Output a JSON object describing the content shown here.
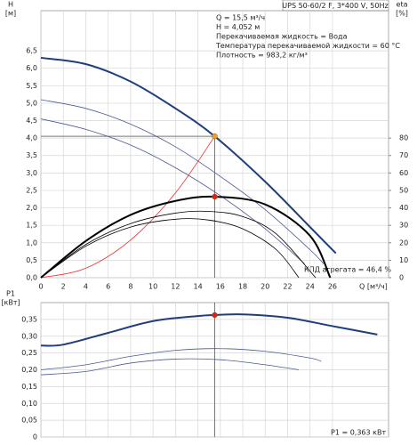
{
  "chart_data": [
    {
      "type": "line",
      "title": "UPS 50-60/2 F, 3*400 V, 50Hz",
      "ylabel": "H",
      "yunit": "[м]",
      "y2label": "eta",
      "y2unit": "[%]",
      "xlabel": "Q [м³/ч]",
      "annotations": [
        "Q = 15,5 м³/ч",
        "H = 4,052 м",
        "Перекачиваемая жидкость = Вода",
        "Температура перекачиваемой жидкости = 60 °C",
        "Плотность = 983,2 кг/м³"
      ],
      "efficiency_label": "КПД агрегата = 46,4 %",
      "grid": true,
      "xlim": [
        0,
        31
      ],
      "xticks": [
        0,
        2,
        4,
        6,
        8,
        10,
        12,
        14,
        16,
        18,
        20,
        22,
        24,
        26
      ],
      "ylim": [
        0,
        7.65
      ],
      "yticks": [
        {
          "value": 0,
          "label": "0,0"
        },
        {
          "value": 0.5,
          "label": "0,5"
        },
        {
          "value": 1,
          "label": "1,0"
        },
        {
          "value": 1.5,
          "label": "1,5"
        },
        {
          "value": 2,
          "label": "2,0"
        },
        {
          "value": 2.5,
          "label": "2,5"
        },
        {
          "value": 3,
          "label": "3,0"
        },
        {
          "value": 3.5,
          "label": "3,5"
        },
        {
          "value": 4,
          "label": "4,0"
        },
        {
          "value": 4.5,
          "label": "4,5"
        },
        {
          "value": 5,
          "label": "5,0"
        },
        {
          "value": 5.5,
          "label": "5,5"
        },
        {
          "value": 6,
          "label": "6,0"
        },
        {
          "value": 6.5,
          "label": "6,5"
        }
      ],
      "y2lim": [
        0,
        153
      ],
      "y2ticks": [
        0,
        10,
        20,
        30,
        40,
        50,
        60,
        70,
        80
      ],
      "series": [
        {
          "color": "#1f3f7a",
          "width": 2,
          "x": [
            0,
            4,
            8,
            12,
            15.5,
            20,
            24,
            26.3
          ],
          "values": [
            6.3,
            6.12,
            5.62,
            4.85,
            4.05,
            2.75,
            1.45,
            0.7
          ]
        },
        {
          "color": "#4a5a90",
          "width": 0.8,
          "x": [
            0,
            4,
            8,
            12,
            16,
            20,
            24,
            25.2
          ],
          "values": [
            5.1,
            4.85,
            4.4,
            3.75,
            2.9,
            1.95,
            0.8,
            0.4
          ]
        },
        {
          "color": "#4a5a90",
          "width": 0.8,
          "x": [
            0,
            4,
            8,
            12,
            16,
            20,
            23.5
          ],
          "values": [
            4.55,
            4.25,
            3.8,
            3.15,
            2.35,
            1.4,
            0.4
          ]
        },
        {
          "color": "#e83030",
          "width": 0.8,
          "x": [
            0,
            4,
            8,
            12,
            15.5
          ],
          "values": [
            0,
            0.27,
            1.08,
            2.43,
            4.05
          ]
        },
        {
          "color": "#000000",
          "width": 2,
          "axis": "y2",
          "x": [
            0,
            4,
            8,
            12,
            15.5,
            20,
            24,
            25.8
          ],
          "values": [
            0,
            21,
            36,
            44,
            46.4,
            42,
            24,
            0
          ]
        },
        {
          "color": "#000000",
          "width": 0.8,
          "axis": "y2",
          "x": [
            0,
            4,
            8,
            12,
            15,
            18,
            21,
            24.5
          ],
          "values": [
            0,
            19,
            31,
            37,
            38,
            35,
            25,
            0
          ]
        },
        {
          "color": "#000000",
          "width": 0.8,
          "axis": "y2",
          "x": [
            0,
            4,
            8,
            12,
            15,
            18,
            21,
            23
          ],
          "values": [
            0,
            18,
            29,
            33.5,
            33,
            28,
            16,
            0
          ]
        }
      ],
      "points": [
        {
          "x": 15.5,
          "y": 4.052,
          "color": "#f0a020"
        },
        {
          "x": 15.5,
          "y": 46.4,
          "axis": "y2",
          "color": "#e02020"
        }
      ]
    },
    {
      "type": "line",
      "ylabel": "P1",
      "yunit": "[кВт]",
      "annotations": [
        "P1 = 0,363 кВт"
      ],
      "grid": true,
      "xlim": [
        0,
        31
      ],
      "ylim": [
        0,
        0.4
      ],
      "yticks": [
        0,
        {
          "value": 0.05,
          "label": "0,05"
        },
        {
          "value": 0.1,
          "label": "0,10"
        },
        {
          "value": 0.15,
          "label": "0,15"
        },
        {
          "value": 0.2,
          "label": "0,20"
        },
        {
          "value": 0.25,
          "label": "0,25"
        },
        {
          "value": 0.3,
          "label": "0,30"
        },
        {
          "value": 0.35,
          "label": "0,35"
        }
      ],
      "series": [
        {
          "color": "#1f3f7a",
          "width": 2,
          "x": [
            0,
            2,
            6,
            10,
            14,
            15.5,
            18,
            22,
            26,
            30
          ],
          "values": [
            0.272,
            0.275,
            0.31,
            0.345,
            0.36,
            0.363,
            0.365,
            0.355,
            0.33,
            0.305
          ]
        },
        {
          "color": "#4a5a90",
          "width": 0.8,
          "x": [
            0,
            4,
            8,
            12,
            16,
            20,
            24,
            25
          ],
          "values": [
            0.2,
            0.215,
            0.24,
            0.258,
            0.263,
            0.255,
            0.235,
            0.225
          ]
        },
        {
          "color": "#4a5a90",
          "width": 0.8,
          "x": [
            0,
            4,
            8,
            12,
            16,
            20,
            23
          ],
          "values": [
            0.185,
            0.195,
            0.22,
            0.232,
            0.23,
            0.215,
            0.2
          ]
        }
      ],
      "points": [
        {
          "x": 15.5,
          "y": 0.363,
          "color": "#e02020"
        }
      ]
    }
  ]
}
